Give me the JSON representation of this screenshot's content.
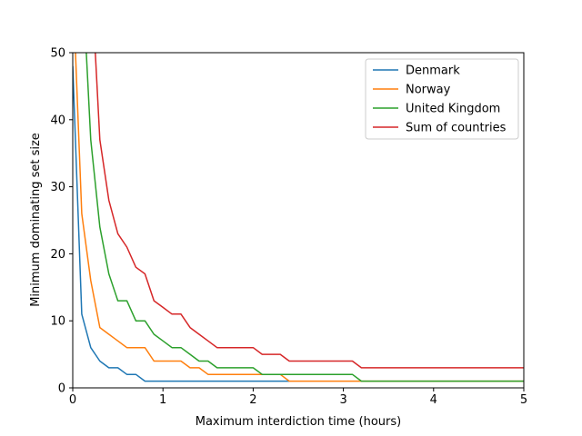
{
  "chart_data": {
    "type": "line",
    "title": "",
    "xlabel": "Maximum interdiction time (hours)",
    "ylabel": "Minimum dominating set size",
    "xlim": [
      0,
      5
    ],
    "ylim": [
      0,
      50
    ],
    "xticks": [
      0,
      1,
      2,
      3,
      4,
      5
    ],
    "yticks": [
      0,
      10,
      20,
      30,
      40,
      50
    ],
    "grid": false,
    "legend_position": "top-right",
    "series": [
      {
        "name": "Denmark",
        "color": "#1f77b4",
        "x": [
          0,
          0.1,
          0.2,
          0.3,
          0.4,
          0.5,
          0.6,
          0.7,
          0.8,
          0.9,
          1.0,
          1.5,
          2.0,
          2.4
        ],
        "y": [
          48,
          11,
          6,
          4,
          3,
          3,
          2,
          2,
          1,
          1,
          1,
          1,
          1,
          1
        ]
      },
      {
        "name": "Norway",
        "color": "#ff7f0e",
        "x": [
          0.03,
          0.1,
          0.2,
          0.3,
          0.4,
          0.5,
          0.6,
          0.7,
          0.8,
          0.9,
          1.0,
          1.1,
          1.2,
          1.3,
          1.4,
          1.5,
          1.6,
          1.7,
          1.8,
          1.9,
          2.0,
          2.1,
          2.2,
          2.3,
          2.4,
          2.5,
          3.0,
          4.0,
          5.0
        ],
        "y": [
          50,
          26,
          16,
          9,
          8,
          7,
          6,
          6,
          6,
          4,
          4,
          4,
          4,
          3,
          3,
          2,
          2,
          2,
          2,
          2,
          2,
          2,
          2,
          2,
          1,
          1,
          1,
          1,
          1
        ]
      },
      {
        "name": "United Kingdom",
        "color": "#2ca02c",
        "x": [
          0.15,
          0.2,
          0.3,
          0.4,
          0.5,
          0.6,
          0.7,
          0.8,
          0.9,
          1.0,
          1.1,
          1.2,
          1.3,
          1.4,
          1.5,
          1.6,
          1.7,
          1.8,
          1.9,
          2.0,
          2.1,
          2.2,
          2.3,
          2.4,
          2.5,
          2.6,
          2.7,
          2.8,
          2.9,
          3.0,
          3.1,
          3.2,
          3.3,
          4.0,
          5.0
        ],
        "y": [
          50,
          37,
          24,
          17,
          13,
          13,
          10,
          10,
          8,
          7,
          6,
          6,
          5,
          4,
          4,
          3,
          3,
          3,
          3,
          3,
          2,
          2,
          2,
          2,
          2,
          2,
          2,
          2,
          2,
          2,
          2,
          1,
          1,
          1,
          1
        ]
      },
      {
        "name": "Sum of countries",
        "color": "#d62728",
        "x": [
          0.25,
          0.3,
          0.4,
          0.5,
          0.6,
          0.7,
          0.8,
          0.9,
          1.0,
          1.1,
          1.2,
          1.3,
          1.4,
          1.5,
          1.6,
          1.7,
          1.8,
          1.9,
          2.0,
          2.1,
          2.2,
          2.3,
          2.4,
          2.5,
          2.6,
          2.7,
          2.8,
          2.9,
          3.0,
          3.1,
          3.2,
          3.3,
          4.0,
          5.0
        ],
        "y": [
          50,
          37,
          28,
          23,
          21,
          18,
          17,
          13,
          12,
          11,
          11,
          9,
          8,
          7,
          6,
          6,
          6,
          6,
          6,
          5,
          5,
          5,
          4,
          4,
          4,
          4,
          4,
          4,
          4,
          4,
          3,
          3,
          3,
          3
        ]
      }
    ]
  }
}
